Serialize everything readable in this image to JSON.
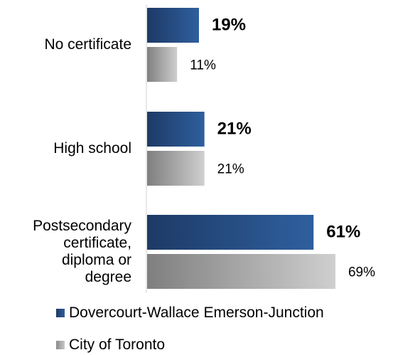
{
  "chart_data": {
    "type": "bar",
    "orientation": "horizontal",
    "categories": [
      "No certificate",
      "High school",
      "Postsecondary certificate, diploma or degree"
    ],
    "category_lines": [
      [
        "No certificate"
      ],
      [
        "High school"
      ],
      [
        "Postsecondary",
        "certificate,",
        "diploma or",
        "degree"
      ]
    ],
    "series": [
      {
        "name": "Dovercourt-Wallace Emerson-Junction",
        "values": [
          19,
          21,
          61
        ],
        "value_labels": [
          "19%",
          "21%",
          "61%"
        ],
        "color": "#2e5d9a"
      },
      {
        "name": "City of Toronto",
        "values": [
          11,
          21,
          69
        ],
        "value_labels": [
          "11%",
          "21%",
          "69%"
        ],
        "color": "#a6a6a6"
      }
    ],
    "xlim": [
      0,
      100
    ],
    "grid": false,
    "legend_position": "bottom"
  }
}
